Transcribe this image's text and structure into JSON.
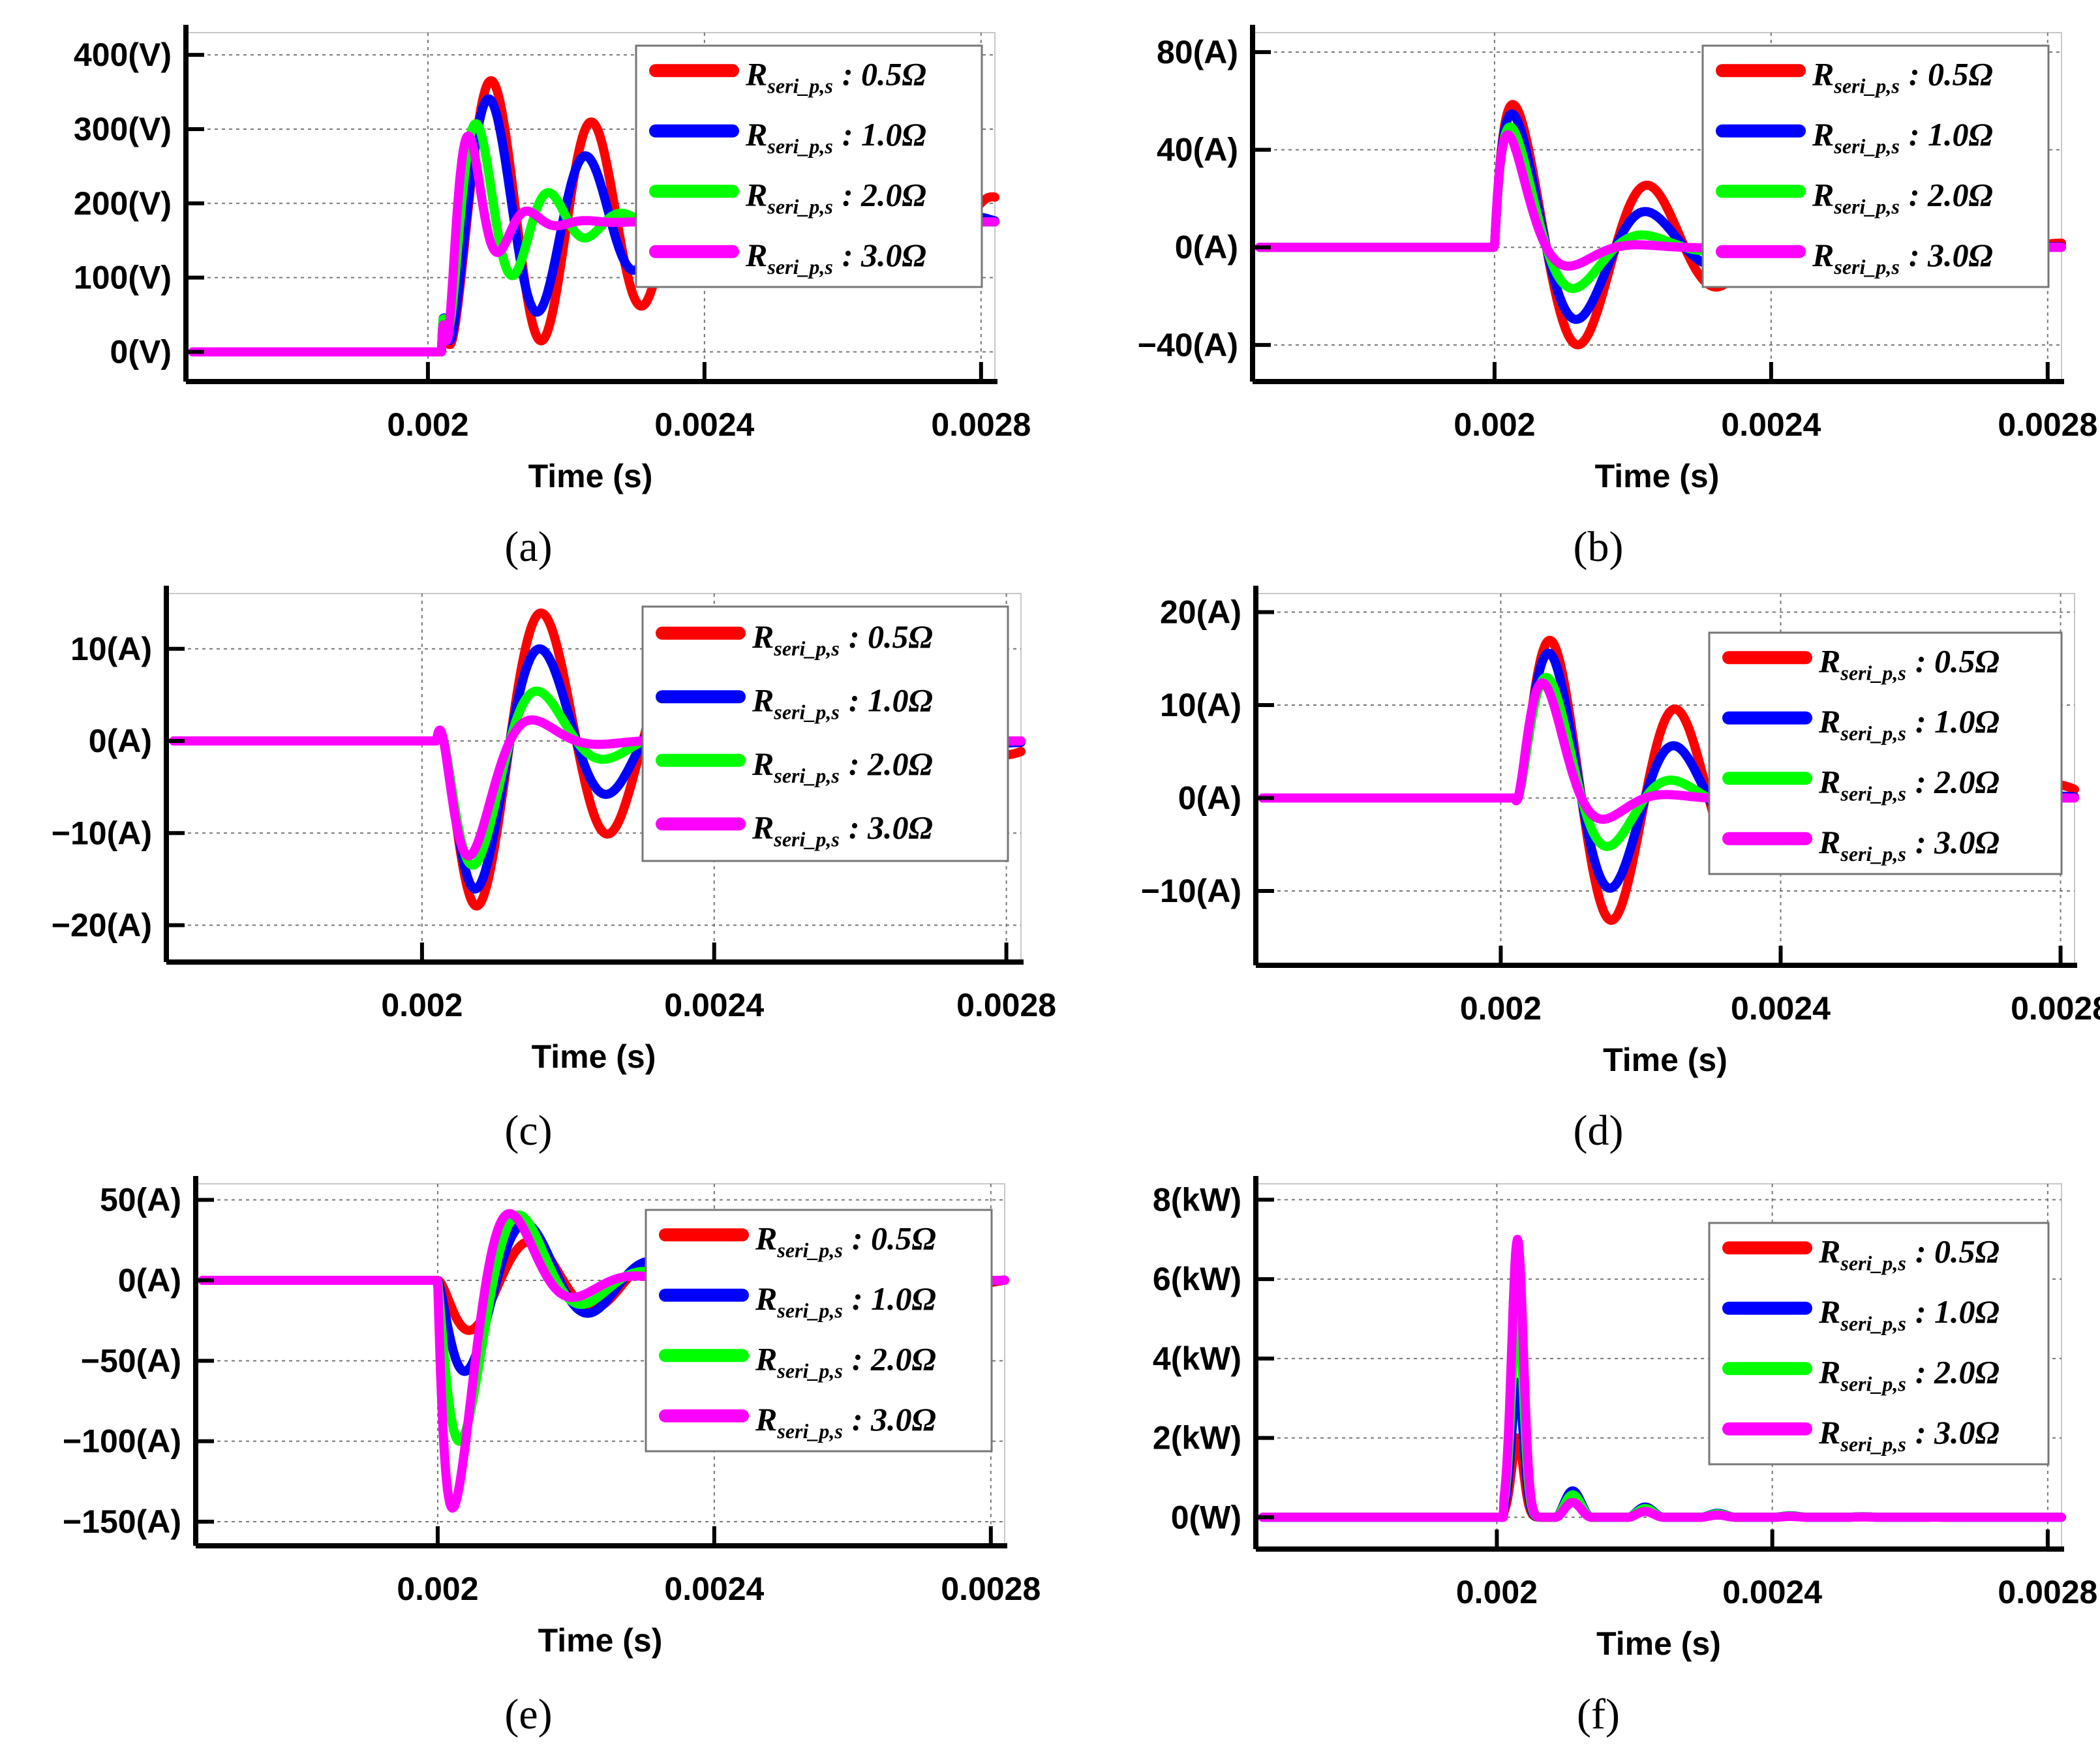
{
  "chart_data": [
    {
      "type": "line",
      "panel": "(a)",
      "xlabel": "Time (s)",
      "ylabel": "",
      "xlim": [
        0.00165,
        0.00282
      ],
      "ylim": [
        -40,
        430
      ],
      "xticks": [
        {
          "value": 0.002,
          "label": "0.002"
        },
        {
          "value": 0.0024,
          "label": "0.0024"
        },
        {
          "value": 0.0028,
          "label": "0.0028"
        }
      ],
      "yticks": [
        {
          "value": 0,
          "label": "0(V)"
        },
        {
          "value": 100,
          "label": "100(V)"
        },
        {
          "value": 200,
          "label": "200(V)"
        },
        {
          "value": 300,
          "label": "300(V)"
        },
        {
          "value": 400,
          "label": "400(V)"
        }
      ],
      "grid": true,
      "legend_position": "top-right",
      "step": {
        "t0": 0.00202,
        "initial": 0
      },
      "series": [
        {
          "name": "R_seri_p,s : 0.5Ω",
          "legend_main": "R",
          "legend_sub": "seri_p,s",
          "legend_value": ": 0.5Ω",
          "color": "#ff0000",
          "final": 175,
          "overshoot": 190,
          "tpeak": 7.25e-05,
          "zeta": 0.1,
          "tail_end": 0.00282
        },
        {
          "name": "R_seri_p,s : 1.0Ω",
          "legend_main": "R",
          "legend_sub": "seri_p,s",
          "legend_value": ": 1.0Ω",
          "color": "#0000ff",
          "final": 175,
          "overshoot": 165,
          "tpeak": 7e-05,
          "zeta": 0.18,
          "tail_end": 0.00282
        },
        {
          "name": "R_seri_p,s : 2.0Ω",
          "legend_main": "R",
          "legend_sub": "seri_p,s",
          "legend_value": ": 2.0Ω",
          "color": "#00ff00",
          "final": 175,
          "overshoot": 130,
          "tpeak": 5.25e-05,
          "zeta": 0.35,
          "tail_end": 0.00282
        },
        {
          "name": "R_seri_p,s : 3.0Ω",
          "legend_main": "R",
          "legend_sub": "seri_p,s",
          "legend_value": ": 3.0Ω",
          "color": "#ff00ff",
          "final": 175,
          "overshoot": 110,
          "tpeak": 4.25e-05,
          "zeta": 0.6,
          "tail_end": 0.00282
        }
      ]
    },
    {
      "type": "line",
      "panel": "(b)",
      "xlabel": "Time (s)",
      "ylabel": "",
      "xlim": [
        0.00165,
        0.00282
      ],
      "ylim": [
        -55,
        88
      ],
      "xticks": [
        {
          "value": 0.002,
          "label": "0.002"
        },
        {
          "value": 0.0024,
          "label": "0.0024"
        },
        {
          "value": 0.0028,
          "label": "0.0028"
        }
      ],
      "yticks": [
        {
          "value": -40,
          "label": "−40(A)"
        },
        {
          "value": 0,
          "label": "0(A)"
        },
        {
          "value": 40,
          "label": "40(A)"
        },
        {
          "value": 80,
          "label": "80(A)"
        }
      ],
      "grid": true,
      "legend_position": "top-right",
      "step": {
        "t0": 0.002,
        "initial": 0
      },
      "series": [
        {
          "name": "R_seri_p,s : 0.5Ω",
          "legend_main": "R",
          "legend_sub": "seri_p,s",
          "legend_value": ": 0.5Ω",
          "color": "#ff0000",
          "final": 0,
          "pulse": 62,
          "tpeak": 2.5e-05,
          "freq": 5000,
          "decay": 4500,
          "tail_end": 0.00282
        },
        {
          "name": "R_seri_p,s : 1.0Ω",
          "legend_main": "R",
          "legend_sub": "seri_p,s",
          "legend_value": ": 1.0Ω",
          "color": "#0000ff",
          "final": 0,
          "pulse": 58,
          "tpeak": 2.5e-05,
          "freq": 5000,
          "decay": 7000,
          "tail_end": 0.00282
        },
        {
          "name": "R_seri_p,s : 2.0Ω",
          "legend_main": "R",
          "legend_sub": "seri_p,s",
          "legend_value": ": 2.0Ω",
          "color": "#00ff00",
          "final": 0,
          "pulse": 52,
          "tpeak": 2.5e-05,
          "freq": 5000,
          "decay": 12000,
          "tail_end": 0.00282
        },
        {
          "name": "R_seri_p,s : 3.0Ω",
          "legend_main": "R",
          "legend_sub": "seri_p,s",
          "legend_value": ": 3.0Ω",
          "color": "#ff00ff",
          "final": 0,
          "pulse": 47,
          "tpeak": 2.5e-05,
          "freq": 5000,
          "decay": 20000,
          "tail_end": 0.00282
        }
      ]
    },
    {
      "type": "line",
      "panel": "(c)",
      "xlabel": "Time (s)",
      "ylabel": "",
      "xlim": [
        0.00165,
        0.00282
      ],
      "ylim": [
        -24,
        16
      ],
      "xticks": [
        {
          "value": 0.002,
          "label": "0.002"
        },
        {
          "value": 0.0024,
          "label": "0.0024"
        },
        {
          "value": 0.0028,
          "label": "0.0028"
        }
      ],
      "yticks": [
        {
          "value": -20,
          "label": "−20(A)"
        },
        {
          "value": -10,
          "label": "−10(A)"
        },
        {
          "value": 0,
          "label": "0(A)"
        },
        {
          "value": 10,
          "label": "10(A)"
        }
      ],
      "grid": true,
      "legend_position": "top-right",
      "step": {
        "t0": 0.00202,
        "initial": 0
      },
      "series": [
        {
          "name": "R_seri_p,s : 0.5Ω",
          "legend_main": "R",
          "legend_sub": "seri_p,s",
          "legend_value": ": 0.5Ω",
          "color": "#ff0000",
          "final": 0,
          "pulse": -19,
          "tpeak": 5.5e-05,
          "freq": 5500,
          "decay": 3500,
          "tail_end": 0.00282
        },
        {
          "name": "R_seri_p,s : 1.0Ω",
          "legend_main": "R",
          "legend_sub": "seri_p,s",
          "legend_value": ": 1.0Ω",
          "color": "#0000ff",
          "final": 0,
          "pulse": -17,
          "tpeak": 5.5e-05,
          "freq": 5500,
          "decay": 6000,
          "tail_end": 0.00282
        },
        {
          "name": "R_seri_p,s : 2.0Ω",
          "legend_main": "R",
          "legend_sub": "seri_p,s",
          "legend_value": ": 2.0Ω",
          "color": "#00ff00",
          "final": 0,
          "pulse": -14,
          "tpeak": 5.5e-05,
          "freq": 5500,
          "decay": 11000,
          "tail_end": 0.00282
        },
        {
          "name": "R_seri_p,s : 3.0Ω",
          "legend_main": "R",
          "legend_sub": "seri_p,s",
          "legend_value": ": 3.0Ω",
          "color": "#ff00ff",
          "final": 0,
          "pulse": -12,
          "tpeak": 5.5e-05,
          "freq": 5500,
          "decay": 20000,
          "tail_end": 0.00282
        }
      ]
    },
    {
      "type": "line",
      "panel": "(d)",
      "xlabel": "Time (s)",
      "ylabel": "",
      "xlim": [
        0.00165,
        0.00282
      ],
      "ylim": [
        -18,
        22
      ],
      "xticks": [
        {
          "value": 0.002,
          "label": "0.002"
        },
        {
          "value": 0.0024,
          "label": "0.0024"
        },
        {
          "value": 0.0028,
          "label": "0.0028"
        }
      ],
      "yticks": [
        {
          "value": -10,
          "label": "−10(A)"
        },
        {
          "value": 0,
          "label": "0(A)"
        },
        {
          "value": 10,
          "label": "10(A)"
        },
        {
          "value": 20,
          "label": "20(A)"
        }
      ],
      "grid": true,
      "legend_position": "top-right",
      "step": {
        "t0": 0.00202,
        "initial": 0
      },
      "series": [
        {
          "name": "R_seri_p,s : 0.5Ω",
          "legend_main": "R",
          "legend_sub": "seri_p,s",
          "legend_value": ": 0.5Ω",
          "color": "#ff0000",
          "final": 0,
          "pulse": 18,
          "tpeak": 5e-05,
          "freq": 5500,
          "decay": 3500,
          "tail_end": 0.00282
        },
        {
          "name": "R_seri_p,s : 1.0Ω",
          "legend_main": "R",
          "legend_sub": "seri_p,s",
          "legend_value": ": 1.0Ω",
          "color": "#0000ff",
          "final": 0,
          "pulse": 16.5,
          "tpeak": 5e-05,
          "freq": 5500,
          "decay": 6000,
          "tail_end": 0.00282
        },
        {
          "name": "R_seri_p,s : 2.0Ω",
          "legend_main": "R",
          "legend_sub": "seri_p,s",
          "legend_value": ": 2.0Ω",
          "color": "#00ff00",
          "final": 0,
          "pulse": 13.5,
          "tpeak": 5e-05,
          "freq": 5500,
          "decay": 11000,
          "tail_end": 0.00282
        },
        {
          "name": "R_seri_p,s : 3.0Ω",
          "legend_main": "R",
          "legend_sub": "seri_p,s",
          "legend_value": ": 3.0Ω",
          "color": "#ff00ff",
          "final": 0,
          "pulse": 12,
          "tpeak": 5e-05,
          "freq": 5500,
          "decay": 20000,
          "tail_end": 0.00282
        }
      ]
    },
    {
      "type": "line",
      "panel": "(e)",
      "xlabel": "Time (s)",
      "ylabel": "",
      "xlim": [
        0.00165,
        0.00282
      ],
      "ylim": [
        -165,
        60
      ],
      "xticks": [
        {
          "value": 0.002,
          "label": "0.002"
        },
        {
          "value": 0.0024,
          "label": "0.0024"
        },
        {
          "value": 0.0028,
          "label": "0.0028"
        }
      ],
      "yticks": [
        {
          "value": -150,
          "label": "−150(A)"
        },
        {
          "value": -100,
          "label": "−100(A)"
        },
        {
          "value": -50,
          "label": "−50(A)"
        },
        {
          "value": 0,
          "label": "0(A)"
        },
        {
          "value": 50,
          "label": "50(A)"
        }
      ],
      "grid": true,
      "legend_position": "top-right",
      "step": {
        "t0": 0.002,
        "initial": 0
      },
      "series": [
        {
          "name": "R_seri_p,s : 0.5Ω",
          "legend_main": "R",
          "legend_sub": "seri_p,s",
          "legend_value": ": 0.5Ω",
          "color": "#ff0000",
          "final": 0,
          "pulse": -33,
          "tpeak": 4.5e-05,
          "freq": 5500,
          "decay": 3500,
          "tail_end": 0.00282
        },
        {
          "name": "R_seri_p,s : 1.0Ω",
          "legend_main": "R",
          "legend_sub": "seri_p,s",
          "legend_value": ": 1.0Ω",
          "color": "#0000ff",
          "final": 0,
          "pulse": -60,
          "tpeak": 4e-05,
          "freq": 5500,
          "decay": 6000,
          "tail_end": 0.00282
        },
        {
          "name": "R_seri_p,s : 2.0Ω",
          "legend_main": "R",
          "legend_sub": "seri_p,s",
          "legend_value": ": 2.0Ω",
          "color": "#00ff00",
          "final": 0,
          "pulse": -105,
          "tpeak": 3.5e-05,
          "freq": 5500,
          "decay": 11000,
          "tail_end": 0.00282
        },
        {
          "name": "R_seri_p,s : 3.0Ω",
          "legend_main": "R",
          "legend_sub": "seri_p,s",
          "legend_value": ": 3.0Ω",
          "color": "#ff00ff",
          "final": 0,
          "pulse": -148,
          "tpeak": 2.5e-05,
          "freq": 5500,
          "decay": 15000,
          "tail_end": 0.00282
        }
      ]
    },
    {
      "type": "line",
      "panel": "(f)",
      "xlabel": "Time (s)",
      "ylabel": "",
      "xlim": [
        0.00165,
        0.00282
      ],
      "ylim": [
        -0.8,
        8.4
      ],
      "xticks": [
        {
          "value": 0.002,
          "label": "0.002"
        },
        {
          "value": 0.0024,
          "label": "0.0024"
        },
        {
          "value": 0.0028,
          "label": "0.0028"
        }
      ],
      "yticks": [
        {
          "value": 0,
          "label": "0(W)"
        },
        {
          "value": 2,
          "label": "2(kW)"
        },
        {
          "value": 4,
          "label": "4(kW)"
        },
        {
          "value": 6,
          "label": "6(kW)"
        },
        {
          "value": 8,
          "label": "8(kW)"
        }
      ],
      "grid": true,
      "legend_position": "top-right",
      "step": {
        "t0": 0.00201,
        "initial": 0
      },
      "series": [
        {
          "name": "R_seri_p,s : 0.5Ω",
          "legend_main": "R",
          "legend_sub": "seri_p,s",
          "legend_value": ": 0.5Ω",
          "color": "#ff0000",
          "final": 0,
          "power_peak": 2.0,
          "ring": 0.3,
          "tail_end": 0.00282
        },
        {
          "name": "R_seri_p,s : 1.0Ω",
          "legend_main": "R",
          "legend_sub": "seri_p,s",
          "legend_value": ": 1.0Ω",
          "color": "#0000ff",
          "final": 0,
          "power_peak": 3.4,
          "ring": 0.22,
          "tail_end": 0.00282
        },
        {
          "name": "R_seri_p,s : 2.0Ω",
          "legend_main": "R",
          "legend_sub": "seri_p,s",
          "legend_value": ": 2.0Ω",
          "color": "#00ff00",
          "final": 0,
          "power_peak": 5.3,
          "ring": 0.12,
          "tail_end": 0.00282
        },
        {
          "name": "R_seri_p,s : 3.0Ω",
          "legend_main": "R",
          "legend_sub": "seri_p,s",
          "legend_value": ": 3.0Ω",
          "color": "#ff00ff",
          "final": 0,
          "power_peak": 7.0,
          "ring": 0.06,
          "tail_end": 0.00282
        }
      ]
    }
  ]
}
